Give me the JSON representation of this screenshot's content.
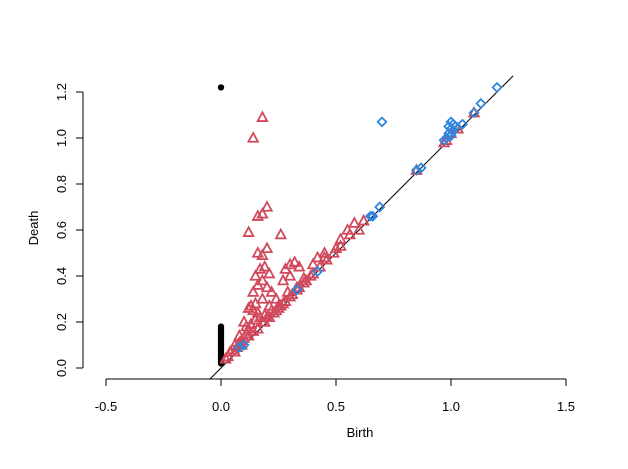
{
  "chart_data": {
    "type": "scatter",
    "title": "",
    "xlabel": "Birth",
    "ylabel": "Death",
    "xlim": [
      -0.5,
      1.5
    ],
    "ylim": [
      0,
      1.25
    ],
    "x_ticks": [
      -0.5,
      0.0,
      0.5,
      1.0,
      1.5
    ],
    "x_tick_labels": [
      "-0.5",
      "0.0",
      "0.5",
      "1.0",
      "1.5"
    ],
    "y_ticks": [
      0.0,
      0.2,
      0.4,
      0.6,
      0.8,
      1.0,
      1.2
    ],
    "y_tick_labels": [
      "0.0",
      "0.2",
      "0.4",
      "0.6",
      "0.8",
      "1.0",
      "1.2"
    ],
    "grid": false,
    "diagonal_line": {
      "from": [
        -0.05,
        -0.05
      ],
      "to": [
        1.27,
        1.27
      ]
    },
    "series": [
      {
        "marker": "filled-circle",
        "color": "#000000",
        "points": [
          [
            0.0,
            1.22
          ],
          [
            0.0,
            0.18
          ],
          [
            0.0,
            0.17
          ],
          [
            0.0,
            0.16
          ],
          [
            0.0,
            0.15
          ],
          [
            0.0,
            0.14
          ],
          [
            0.0,
            0.13
          ],
          [
            0.0,
            0.12
          ],
          [
            0.0,
            0.11
          ],
          [
            0.0,
            0.1
          ],
          [
            0.0,
            0.09
          ],
          [
            0.0,
            0.08
          ],
          [
            0.0,
            0.07
          ],
          [
            0.0,
            0.06
          ],
          [
            0.0,
            0.05
          ],
          [
            0.0,
            0.04
          ],
          [
            0.0,
            0.03
          ],
          [
            0.0,
            0.02
          ]
        ]
      },
      {
        "marker": "open-triangle",
        "color": "#d1495b",
        "points": [
          [
            0.18,
            1.09
          ],
          [
            0.14,
            1.0
          ],
          [
            0.2,
            0.7
          ],
          [
            0.16,
            0.66
          ],
          [
            0.18,
            0.67
          ],
          [
            0.12,
            0.59
          ],
          [
            0.26,
            0.58
          ],
          [
            0.2,
            0.52
          ],
          [
            0.18,
            0.49
          ],
          [
            0.16,
            0.5
          ],
          [
            0.19,
            0.44
          ],
          [
            0.17,
            0.43
          ],
          [
            0.21,
            0.41
          ],
          [
            0.15,
            0.4
          ],
          [
            0.18,
            0.38
          ],
          [
            0.16,
            0.36
          ],
          [
            0.2,
            0.35
          ],
          [
            0.14,
            0.33
          ],
          [
            0.22,
            0.33
          ],
          [
            0.18,
            0.3
          ],
          [
            0.24,
            0.3
          ],
          [
            0.15,
            0.28
          ],
          [
            0.21,
            0.27
          ],
          [
            0.12,
            0.26
          ],
          [
            0.25,
            0.26
          ],
          [
            0.3,
            0.45
          ],
          [
            0.32,
            0.46
          ],
          [
            0.28,
            0.43
          ],
          [
            0.34,
            0.44
          ],
          [
            0.4,
            0.45
          ],
          [
            0.3,
            0.4
          ],
          [
            0.36,
            0.39
          ],
          [
            0.27,
            0.38
          ],
          [
            0.33,
            0.35
          ],
          [
            0.29,
            0.33
          ],
          [
            0.45,
            0.48
          ],
          [
            0.5,
            0.52
          ],
          [
            0.55,
            0.6
          ],
          [
            0.58,
            0.63
          ],
          [
            0.6,
            0.6
          ],
          [
            0.62,
            0.64
          ],
          [
            0.56,
            0.58
          ],
          [
            0.52,
            0.56
          ],
          [
            0.45,
            0.5
          ],
          [
            0.42,
            0.48
          ],
          [
            0.13,
            0.27
          ],
          [
            0.14,
            0.25
          ],
          [
            0.16,
            0.24
          ],
          [
            0.19,
            0.23
          ],
          [
            0.22,
            0.25
          ],
          [
            0.25,
            0.27
          ],
          [
            0.28,
            0.29
          ],
          [
            0.31,
            0.32
          ],
          [
            0.34,
            0.35
          ],
          [
            0.37,
            0.38
          ],
          [
            0.4,
            0.41
          ],
          [
            0.43,
            0.44
          ],
          [
            0.46,
            0.47
          ],
          [
            0.49,
            0.5
          ],
          [
            0.52,
            0.53
          ],
          [
            0.1,
            0.2
          ],
          [
            0.11,
            0.18
          ],
          [
            0.12,
            0.17
          ],
          [
            0.13,
            0.19
          ],
          [
            0.15,
            0.21
          ],
          [
            0.17,
            0.22
          ],
          [
            0.18,
            0.2
          ],
          [
            0.2,
            0.22
          ],
          [
            0.23,
            0.24
          ],
          [
            0.26,
            0.27
          ],
          [
            0.08,
            0.14
          ],
          [
            0.09,
            0.12
          ],
          [
            0.1,
            0.13
          ],
          [
            0.11,
            0.15
          ],
          [
            0.12,
            0.14
          ],
          [
            0.06,
            0.1
          ],
          [
            0.07,
            0.09
          ],
          [
            0.08,
            0.11
          ],
          [
            0.05,
            0.08
          ],
          [
            0.04,
            0.07
          ],
          [
            0.03,
            0.05
          ],
          [
            0.02,
            0.04
          ],
          [
            0.06,
            0.07
          ],
          [
            0.09,
            0.1
          ],
          [
            0.14,
            0.16
          ],
          [
            0.16,
            0.17
          ],
          [
            0.19,
            0.2
          ],
          [
            0.21,
            0.22
          ],
          [
            0.24,
            0.25
          ],
          [
            0.27,
            0.28
          ],
          [
            0.3,
            0.31
          ],
          [
            0.33,
            0.34
          ],
          [
            0.36,
            0.37
          ],
          [
            0.39,
            0.4
          ],
          [
            0.98,
            0.99
          ],
          [
            1.0,
            1.02
          ],
          [
            1.03,
            1.04
          ],
          [
            1.1,
            1.11
          ],
          [
            0.97,
            0.98
          ],
          [
            0.85,
            0.86
          ]
        ]
      },
      {
        "marker": "open-diamond",
        "color": "#2e86de",
        "points": [
          [
            0.7,
            1.07
          ],
          [
            1.2,
            1.22
          ],
          [
            1.13,
            1.15
          ],
          [
            1.1,
            1.11
          ],
          [
            1.05,
            1.06
          ],
          [
            1.0,
            1.07
          ],
          [
            1.01,
            1.06
          ],
          [
            0.99,
            1.05
          ],
          [
            1.02,
            1.05
          ],
          [
            1.0,
            1.04
          ],
          [
            1.01,
            1.03
          ],
          [
            0.99,
            1.02
          ],
          [
            1.0,
            1.01
          ],
          [
            0.98,
            1.0
          ],
          [
            0.97,
            0.99
          ],
          [
            0.87,
            0.87
          ],
          [
            0.85,
            0.86
          ],
          [
            0.69,
            0.7
          ],
          [
            0.66,
            0.66
          ],
          [
            0.65,
            0.66
          ],
          [
            0.42,
            0.42
          ],
          [
            0.33,
            0.34
          ],
          [
            0.1,
            0.1
          ],
          [
            0.08,
            0.09
          ]
        ]
      }
    ]
  }
}
